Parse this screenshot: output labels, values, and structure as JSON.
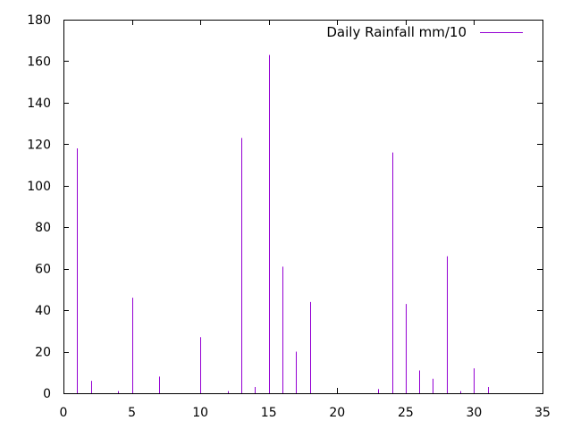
{
  "chart_data": {
    "type": "bar",
    "style": "impulses",
    "title": "",
    "xlabel": "",
    "ylabel": "",
    "xlim": [
      0,
      35
    ],
    "ylim": [
      0,
      180
    ],
    "xticks": [
      "0",
      "5",
      "10",
      "15",
      "20",
      "25",
      "30",
      "35"
    ],
    "yticks": [
      "0",
      "20",
      "40",
      "60",
      "80",
      "100",
      "120",
      "140",
      "160",
      "180"
    ],
    "grid": false,
    "legend_position": "top-right",
    "series": [
      {
        "name": "Daily Rainfall mm/10",
        "color": "#9400d3",
        "x": [
          1,
          2,
          3,
          4,
          5,
          6,
          7,
          8,
          9,
          10,
          11,
          12,
          13,
          14,
          15,
          16,
          17,
          18,
          19,
          20,
          21,
          22,
          23,
          24,
          25,
          26,
          27,
          28,
          29,
          30,
          31
        ],
        "y": [
          118,
          6,
          0,
          1,
          46,
          0,
          8,
          0,
          0,
          27,
          0,
          1,
          123,
          3,
          163,
          61,
          20,
          44,
          0,
          0,
          0,
          0,
          2,
          116,
          43,
          11,
          7,
          66,
          1,
          12,
          3
        ]
      }
    ]
  }
}
